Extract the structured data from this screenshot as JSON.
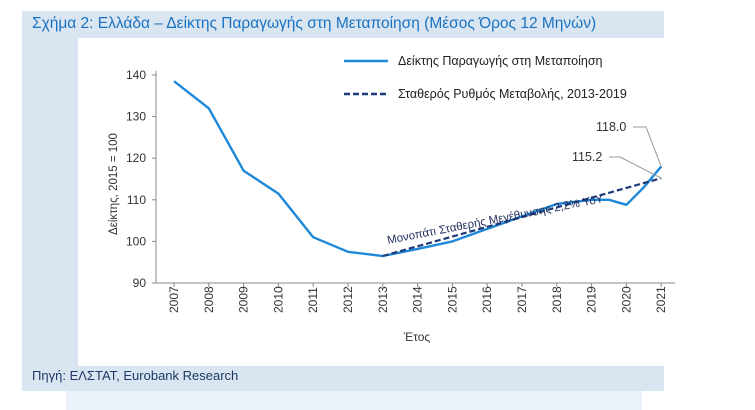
{
  "figure": {
    "title": "Σχήμα 2: Ελλάδα – Δείκτης Παραγωγής στη Μεταποίηση (Μέσος Όρος 12 Μηνών)",
    "source": "Πηγή: ΕΛΣΤΑΤ, Eurobank Research"
  },
  "colors": {
    "series_actual": "#1e88d8",
    "series_trend": "#1f3a78",
    "title": "#1a73c2",
    "source": "#1f3864"
  },
  "chart_data": {
    "type": "line",
    "x": [
      "2007",
      "2008",
      "2009",
      "2010",
      "2011",
      "2012",
      "2013",
      "2014",
      "2015",
      "2016",
      "2017",
      "2018",
      "2019",
      "2020",
      "2021"
    ],
    "xlabel": "Έτος",
    "ylabel": "Δείκτης, 2015 = 100",
    "ylim": [
      90,
      140
    ],
    "yticks": [
      90,
      100,
      110,
      120,
      130,
      140
    ],
    "grid": false,
    "legend": "top-right",
    "series": [
      {
        "name": "Δείκτης Παραγωγής στη Μεταποίηση",
        "style": "solid",
        "x": [
          2007,
          2008,
          2009,
          2010,
          2011,
          2012,
          2013,
          2014,
          2015,
          2016,
          2017,
          2018,
          2019,
          2019.5,
          2020,
          2020.5,
          2021
        ],
        "values": [
          138.5,
          132,
          117,
          111.5,
          101,
          97.5,
          96.5,
          98.2,
          100,
          103,
          106,
          109,
          110,
          110,
          108.8,
          113,
          118
        ]
      },
      {
        "name": "Σταθερός Ρυθμός Μεταβολής, 2013-2019",
        "style": "dashed",
        "x": [
          2013,
          2021
        ],
        "values": [
          96.5,
          115.2
        ]
      }
    ],
    "annotations": [
      {
        "text": "118.0",
        "x": 2021,
        "y": 118.0
      },
      {
        "text": "115.2",
        "x": 2021,
        "y": 115.2
      },
      {
        "text": "Μονοπάτι Σταθερής Μεγέθυνσης 2,2% YoY",
        "x": 2017,
        "y": 106
      }
    ]
  }
}
